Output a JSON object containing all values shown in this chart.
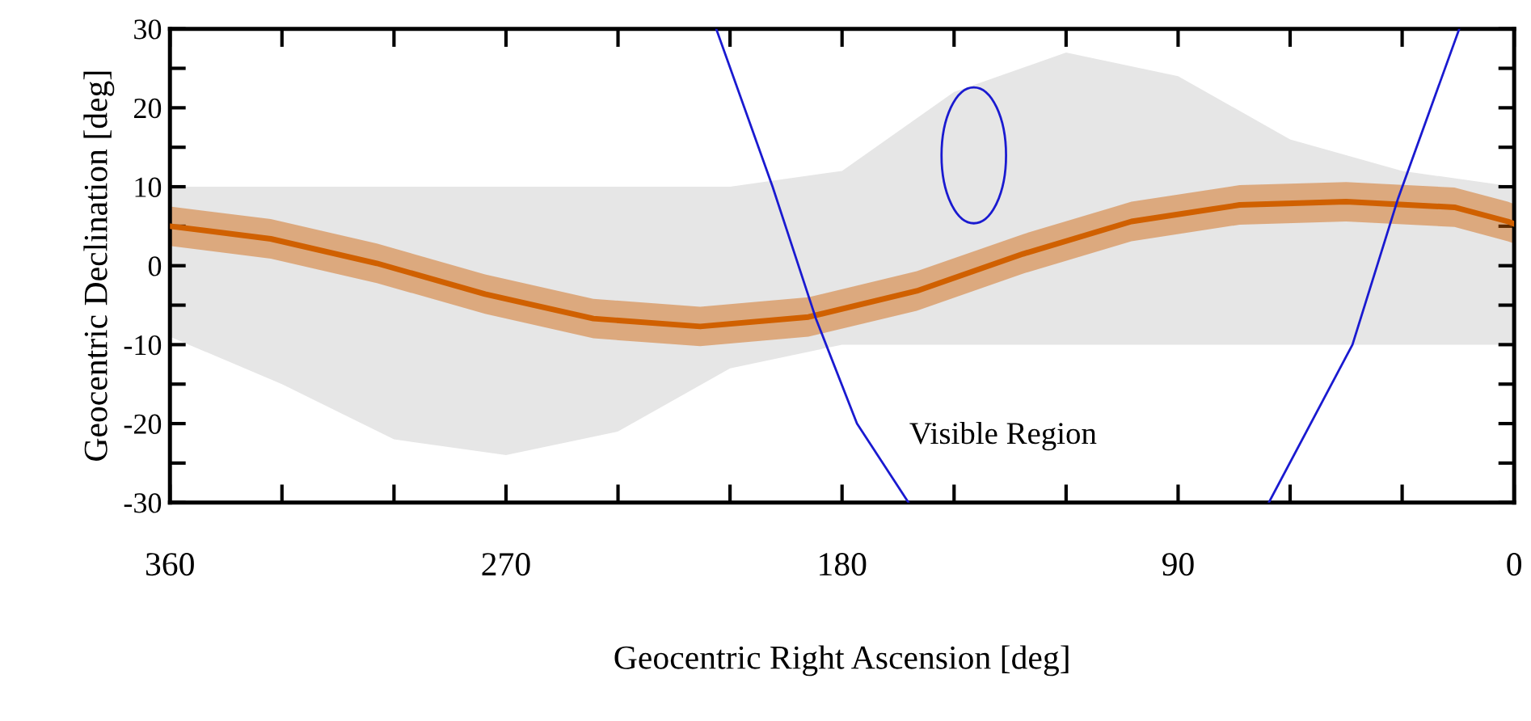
{
  "chart_data": {
    "type": "line",
    "xlabel": "Geocentric Right Ascension [deg]",
    "ylabel": "Geocentric Declination [deg]",
    "xlim": [
      360,
      0
    ],
    "ylim": [
      -30,
      30
    ],
    "xticks": [
      360,
      {
        "value": 330,
        "label": null
      },
      {
        "value": 300,
        "label": null
      },
      270,
      {
        "value": 240,
        "label": null
      },
      {
        "value": 210,
        "label": null
      },
      180,
      {
        "value": 150,
        "label": null
      },
      {
        "value": 120,
        "label": null
      },
      90,
      {
        "value": 60,
        "label": null
      },
      {
        "value": 30,
        "label": null
      },
      0
    ],
    "yticks": [
      -30,
      {
        "value": -25,
        "label": null
      },
      -20,
      {
        "value": -15,
        "label": null
      },
      -10,
      {
        "value": -5,
        "label": null
      },
      0,
      {
        "value": 5,
        "label": null
      },
      10,
      {
        "value": 15,
        "label": null
      },
      20,
      {
        "value": 25,
        "label": null
      },
      30
    ],
    "grid": false,
    "marker": "none",
    "line_style": "solid",
    "annotations": [
      "Visible Region"
    ],
    "series": [
      {
        "type": "area",
        "color": "#e6e6e6",
        "x": [
          360,
          330,
          300,
          270,
          240,
          210,
          180,
          150,
          120,
          90,
          60,
          30,
          0
        ],
        "values": [
          null,
          null,
          null,
          null,
          null,
          null,
          null,
          null,
          null,
          null,
          null,
          null,
          null
        ],
        "lower": [
          -9,
          -15,
          -22,
          -24,
          -21,
          -13,
          -10,
          -10,
          -10,
          -10,
          -10,
          -10,
          -10
        ],
        "upper": [
          10,
          10,
          10,
          10,
          10,
          10,
          12,
          22,
          27,
          24,
          16,
          12,
          10
        ]
      },
      {
        "color": "#d06000",
        "x": [
          360,
          333,
          304.6,
          275.6,
          246.6,
          218,
          189,
          160,
          131.5,
          102.5,
          73.5,
          45,
          16,
          1.7,
          0
        ],
        "values": [
          5.0,
          3.4,
          0.3,
          -3.6,
          -6.7,
          -7.7,
          -6.5,
          -3.2,
          1.5,
          5.6,
          7.7,
          8.1,
          7.4,
          5.6,
          5.3
        ],
        "lower": [
          2.5,
          0.9,
          -2.2,
          -6.1,
          -9.2,
          -10.2,
          -9.0,
          -5.7,
          -1.0,
          3.1,
          5.2,
          5.6,
          4.9,
          3.1,
          2.8
        ],
        "upper": [
          7.5,
          5.9,
          2.8,
          -1.1,
          -4.2,
          -5.2,
          -4.0,
          -0.7,
          4.0,
          8.1,
          10.2,
          10.6,
          9.9,
          8.1,
          7.8
        ]
      },
      {
        "color": "#1a1ad0",
        "x": [
          213.7,
          198.6,
          187,
          176,
          162.2
        ],
        "values": [
          30,
          10,
          -6.7,
          -20,
          -30
        ]
      },
      {
        "color": "#1a1ad0",
        "x": [
          65.7,
          43.3,
          31.1,
          14.7
        ],
        "values": [
          -30,
          -10,
          8.5,
          30
        ]
      }
    ]
  }
}
